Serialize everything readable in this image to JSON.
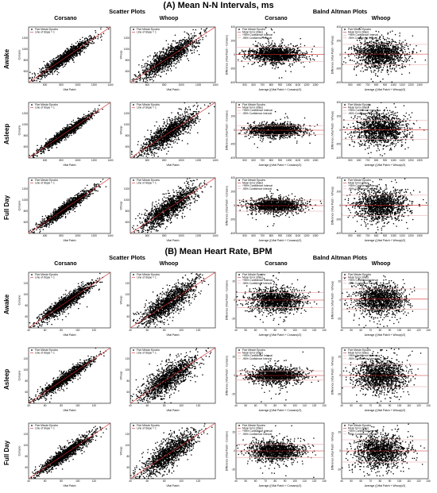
{
  "sections": [
    {
      "title": "(A)   Mean N-N Intervals, ms"
    },
    {
      "title": "(B)   Mean Heart Rate, BPM"
    }
  ],
  "group_titles": {
    "scatter": "Scatter Plots",
    "ba": "Balnd Altman Plots"
  },
  "column_titles": [
    "Corsano",
    "Whoop",
    "Corsano",
    "Whoop"
  ],
  "row_titles": [
    "Awake",
    "Asleep",
    "Full Day"
  ],
  "legends": {
    "scatter": [
      "Five Minute Epochs",
      "Line of Slope = 1"
    ],
    "ba": [
      "Five Minute Epochs",
      "Mean Error (Bias)",
      "+95% Confidence Interval",
      "-95% Confidence Interval"
    ]
  },
  "axis_labels": {
    "scatter_x": "Vital Patch",
    "scatter_y": [
      "Corsano",
      "Whoop"
    ],
    "ba_x": [
      "Average ((Vital Patch + Corsano)/2)",
      "Average ((Vital Patch + Whoop)/2)"
    ],
    "ba_y": [
      "Difference (Vital Patch - Corsano)",
      "Difference (Vital Patch - Whoop)"
    ]
  },
  "colors": {
    "points": "#000000",
    "line": "#d62728",
    "ci": "#e8a0a0"
  },
  "chart_data": [
    {
      "section": "A",
      "type": "scatter",
      "description_series": "five-minute epochs",
      "scatter_xlim": [
        400,
        1400
      ],
      "scatter_ylim": [
        400,
        1400
      ],
      "scatter_xticks": [
        "600",
        "800",
        "1000",
        "1200",
        "1400"
      ],
      "scatter_yticks": [
        "600",
        "800",
        "1000",
        "1200"
      ],
      "ba_xlim": [
        400,
        1400
      ],
      "ba_ylim": [
        -400,
        400
      ],
      "ba_xticks": [
        "500",
        "600",
        "700",
        "800",
        "900",
        "1000",
        "1100",
        "1200",
        "1300"
      ],
      "ba_yticks": [
        "-400",
        "-200",
        "0",
        "200",
        "400"
      ],
      "panels": [
        {
          "row": "Awake",
          "col": "Corsano",
          "kind": "scatter",
          "spread": 0.05,
          "density": 1.0
        },
        {
          "row": "Awake",
          "col": "Whoop",
          "kind": "scatter",
          "spread": 0.09,
          "density": 1.0
        },
        {
          "row": "Awake",
          "col": "Corsano",
          "kind": "ba",
          "bias": 5,
          "ci": [
            -100,
            110
          ],
          "spread": 60
        },
        {
          "row": "Awake",
          "col": "Whoop",
          "kind": "ba",
          "bias": 10,
          "ci": [
            -140,
            150
          ],
          "spread": 100
        },
        {
          "row": "Asleep",
          "col": "Corsano",
          "kind": "scatter",
          "spread": 0.04,
          "density": 1.0
        },
        {
          "row": "Asleep",
          "col": "Whoop",
          "kind": "scatter",
          "spread": 0.1,
          "density": 1.0
        },
        {
          "row": "Asleep",
          "col": "Corsano",
          "kind": "ba",
          "bias": 0,
          "ci": [
            -60,
            60
          ],
          "spread": 45
        },
        {
          "row": "Asleep",
          "col": "Whoop",
          "kind": "ba",
          "bias": 5,
          "ci": [
            -130,
            140
          ],
          "spread": 110
        },
        {
          "row": "Full Day",
          "col": "Corsano",
          "kind": "scatter",
          "spread": 0.045,
          "density": 1.0
        },
        {
          "row": "Full Day",
          "col": "Whoop",
          "kind": "scatter",
          "spread": 0.1,
          "density": 1.0
        },
        {
          "row": "Full Day",
          "col": "Corsano",
          "kind": "ba",
          "bias": 0,
          "ci": [
            -80,
            80
          ],
          "spread": 50
        },
        {
          "row": "Full Day",
          "col": "Whoop",
          "kind": "ba",
          "bias": 5,
          "ci": [
            -140,
            150
          ],
          "spread": 110
        }
      ]
    },
    {
      "section": "B",
      "type": "scatter",
      "description_series": "five-minute epochs",
      "scatter_xlim": [
        40,
        140
      ],
      "scatter_ylim": [
        40,
        140
      ],
      "scatter_xticks": [
        "40",
        "60",
        "80",
        "100",
        "120"
      ],
      "scatter_yticks": [
        "60",
        "80",
        "100",
        "120"
      ],
      "ba_xlim": [
        40,
        130
      ],
      "ba_ylim": [
        -30,
        30
      ],
      "ba_xticks": [
        "40",
        "50",
        "60",
        "70",
        "80",
        "90",
        "100",
        "110",
        "120",
        "130"
      ],
      "ba_yticks": [
        "-20",
        "0",
        "20"
      ],
      "panels": [
        {
          "row": "Awake",
          "col": "Corsano",
          "kind": "scatter",
          "spread": 0.06,
          "density": 1.0
        },
        {
          "row": "Awake",
          "col": "Whoop",
          "kind": "scatter",
          "spread": 0.11,
          "density": 1.0
        },
        {
          "row": "Awake",
          "col": "Corsano",
          "kind": "ba",
          "bias": 0,
          "ci": [
            -8,
            8
          ],
          "spread": 6
        },
        {
          "row": "Awake",
          "col": "Whoop",
          "kind": "ba",
          "bias": 1,
          "ci": [
            -10,
            12
          ],
          "spread": 8
        },
        {
          "row": "Asleep",
          "col": "Corsano",
          "kind": "scatter",
          "spread": 0.05,
          "density": 1.0
        },
        {
          "row": "Asleep",
          "col": "Whoop",
          "kind": "scatter",
          "spread": 0.12,
          "density": 1.0
        },
        {
          "row": "Asleep",
          "col": "Corsano",
          "kind": "ba",
          "bias": 0,
          "ci": [
            -5,
            5
          ],
          "spread": 4
        },
        {
          "row": "Asleep",
          "col": "Whoop",
          "kind": "ba",
          "bias": 0,
          "ci": [
            -12,
            12
          ],
          "spread": 9
        },
        {
          "row": "Full Day",
          "col": "Corsano",
          "kind": "scatter",
          "spread": 0.055,
          "density": 1.0
        },
        {
          "row": "Full Day",
          "col": "Whoop",
          "kind": "scatter",
          "spread": 0.12,
          "density": 1.0
        },
        {
          "row": "Full Day",
          "col": "Corsano",
          "kind": "ba",
          "bias": 0,
          "ci": [
            -7,
            7
          ],
          "spread": 5
        },
        {
          "row": "Full Day",
          "col": "Whoop",
          "kind": "ba",
          "bias": 0,
          "ci": [
            -12,
            12
          ],
          "spread": 9
        }
      ]
    }
  ]
}
